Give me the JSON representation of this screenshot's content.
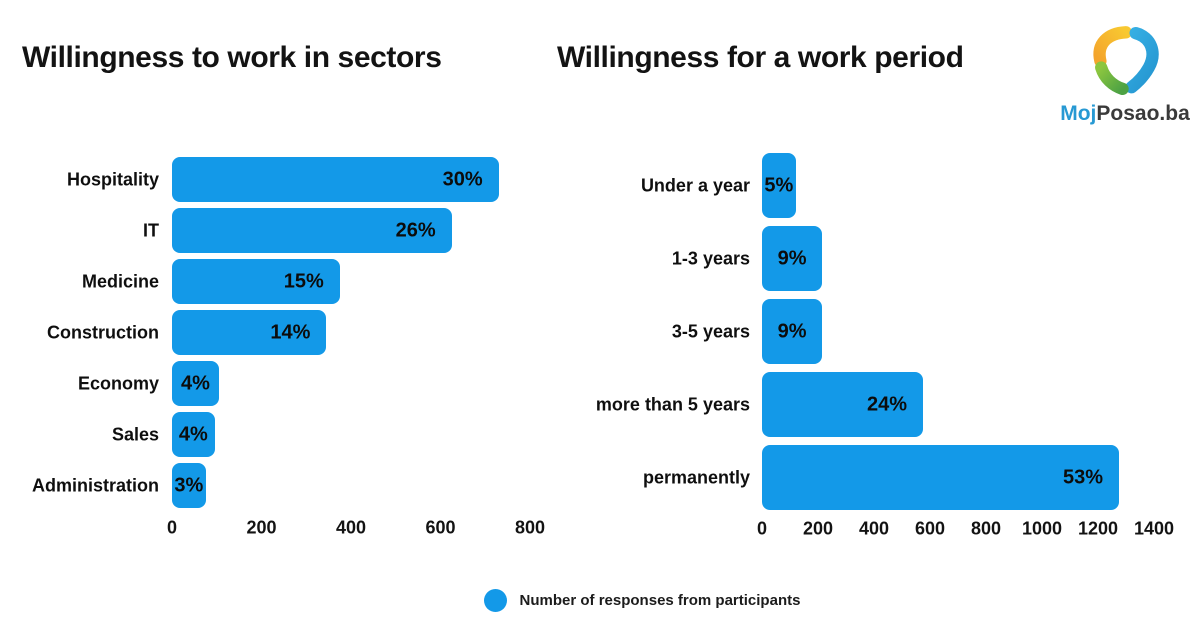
{
  "colors": {
    "bar": "#1399e8",
    "title_text": "#131313",
    "logo_blue": "#2799d3",
    "logo_dark": "#3a3a3a",
    "logo_orange": "#f4a42c",
    "logo_yellow": "#f8c831",
    "logo_green": "#7fbe41",
    "logo_sky": "#35aee3"
  },
  "logo": {
    "moj": "Moj",
    "posao_ba": "Posao.ba",
    "mark": "swirl-triangle-logo"
  },
  "legend": {
    "label": "Number of responses from participants",
    "marker": "blue-dot"
  },
  "chart_data": [
    {
      "type": "bar",
      "orientation": "horizontal",
      "title": "Willingness to work in sectors",
      "categories": [
        "Hospitality",
        "IT",
        "Medicine",
        "Construction",
        "Economy",
        "Sales",
        "Administration"
      ],
      "values": [
        730,
        625,
        375,
        345,
        105,
        95,
        75
      ],
      "labels": [
        "30%",
        "26%",
        "15%",
        "14%",
        "4%",
        "4%",
        "3%"
      ],
      "series_name": "Number of responses from participants",
      "xlabel": "",
      "ylabel": "",
      "xlim": [
        0,
        800
      ],
      "xticks": [
        0,
        200,
        400,
        600,
        800
      ],
      "grid": false,
      "legend_position": "bottom-center"
    },
    {
      "type": "bar",
      "orientation": "horizontal",
      "title": "Willingness for a work period",
      "categories": [
        "Under a year",
        "1-3 years",
        "3-5 years",
        "more than 5 years",
        "permanently"
      ],
      "values": [
        120,
        215,
        215,
        575,
        1275
      ],
      "labels": [
        "5%",
        "9%",
        "9%",
        "24%",
        "53%"
      ],
      "series_name": "Number of responses from participants",
      "xlabel": "",
      "ylabel": "",
      "xlim": [
        0,
        1400
      ],
      "xticks": [
        0,
        200,
        400,
        600,
        800,
        1000,
        1200,
        1400
      ],
      "grid": false,
      "legend_position": "bottom-center"
    }
  ]
}
